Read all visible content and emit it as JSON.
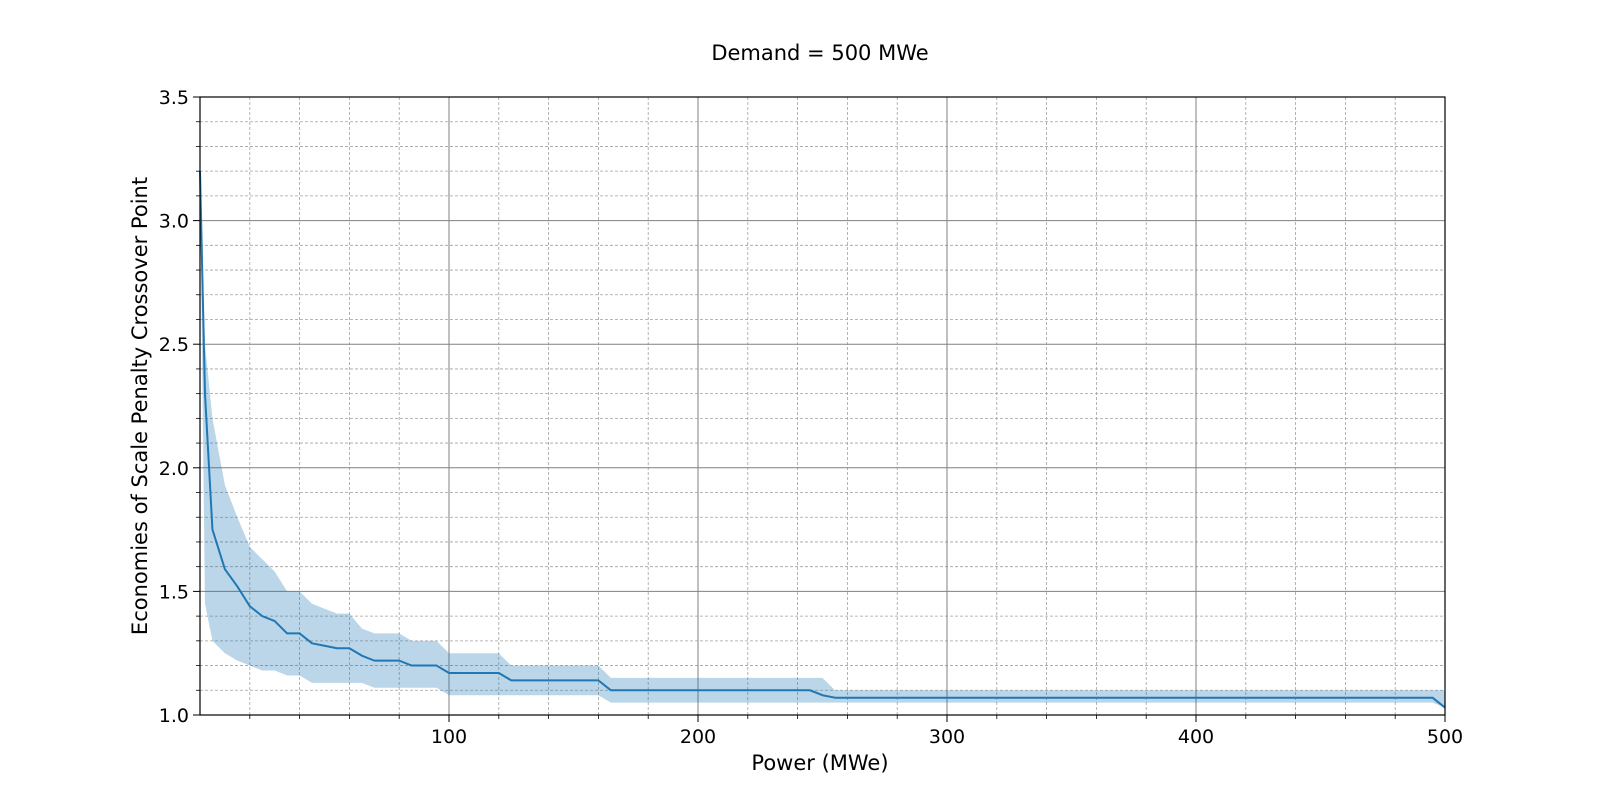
{
  "chart_data": {
    "type": "line",
    "title": "Demand = 500 MWe",
    "xlabel": "Power (MWe)",
    "ylabel": "Economies of Scale Penalty Crossover Point",
    "xlim": [
      0,
      500
    ],
    "ylim": [
      1.0,
      3.5
    ],
    "xticks": [
      100,
      200,
      300,
      400,
      500
    ],
    "xtick_labels": [
      "100",
      "200",
      "300",
      "400",
      "500"
    ],
    "yticks": [
      1.0,
      1.5,
      2.0,
      2.5,
      3.0,
      3.5
    ],
    "ytick_labels": [
      "1.0",
      "1.5",
      "2.0",
      "2.5",
      "3.0",
      "3.5"
    ],
    "grid": {
      "major": true,
      "minor": true
    },
    "colors": {
      "line": "#1f77b4",
      "band": "#1f77b4",
      "major_grid": "#808080",
      "minor_grid": "#a0a0a0"
    },
    "series": [
      {
        "x": [
          0,
          2,
          5,
          10,
          15,
          20,
          25,
          30,
          35,
          40,
          45,
          50,
          55,
          60,
          65,
          70,
          75,
          80,
          85,
          90,
          95,
          100,
          105,
          110,
          115,
          120,
          125,
          130,
          135,
          140,
          145,
          150,
          155,
          160,
          165,
          170,
          200,
          230,
          245,
          250,
          255,
          300,
          350,
          400,
          450,
          490,
          495,
          500
        ],
        "y": [
          3.2,
          2.3,
          1.75,
          1.59,
          1.52,
          1.44,
          1.4,
          1.38,
          1.33,
          1.33,
          1.29,
          1.28,
          1.27,
          1.27,
          1.24,
          1.22,
          1.22,
          1.22,
          1.2,
          1.2,
          1.2,
          1.17,
          1.17,
          1.17,
          1.17,
          1.17,
          1.14,
          1.14,
          1.14,
          1.14,
          1.14,
          1.14,
          1.14,
          1.14,
          1.1,
          1.1,
          1.1,
          1.1,
          1.1,
          1.08,
          1.07,
          1.07,
          1.07,
          1.07,
          1.07,
          1.07,
          1.07,
          1.03
        ],
        "lower": [
          3.2,
          1.45,
          1.3,
          1.25,
          1.22,
          1.2,
          1.18,
          1.18,
          1.16,
          1.16,
          1.13,
          1.13,
          1.13,
          1.13,
          1.13,
          1.11,
          1.11,
          1.11,
          1.11,
          1.11,
          1.11,
          1.08,
          1.08,
          1.08,
          1.08,
          1.08,
          1.08,
          1.08,
          1.08,
          1.08,
          1.08,
          1.08,
          1.08,
          1.08,
          1.05,
          1.05,
          1.05,
          1.05,
          1.05,
          1.05,
          1.05,
          1.05,
          1.05,
          1.05,
          1.05,
          1.05,
          1.05,
          1.03
        ],
        "upper": [
          3.2,
          2.5,
          2.2,
          1.93,
          1.8,
          1.68,
          1.63,
          1.58,
          1.5,
          1.5,
          1.45,
          1.43,
          1.41,
          1.41,
          1.35,
          1.33,
          1.33,
          1.33,
          1.3,
          1.3,
          1.3,
          1.25,
          1.25,
          1.25,
          1.25,
          1.25,
          1.2,
          1.2,
          1.2,
          1.2,
          1.2,
          1.2,
          1.2,
          1.2,
          1.15,
          1.15,
          1.15,
          1.15,
          1.15,
          1.15,
          1.1,
          1.1,
          1.1,
          1.1,
          1.1,
          1.1,
          1.1,
          1.1
        ]
      }
    ]
  }
}
